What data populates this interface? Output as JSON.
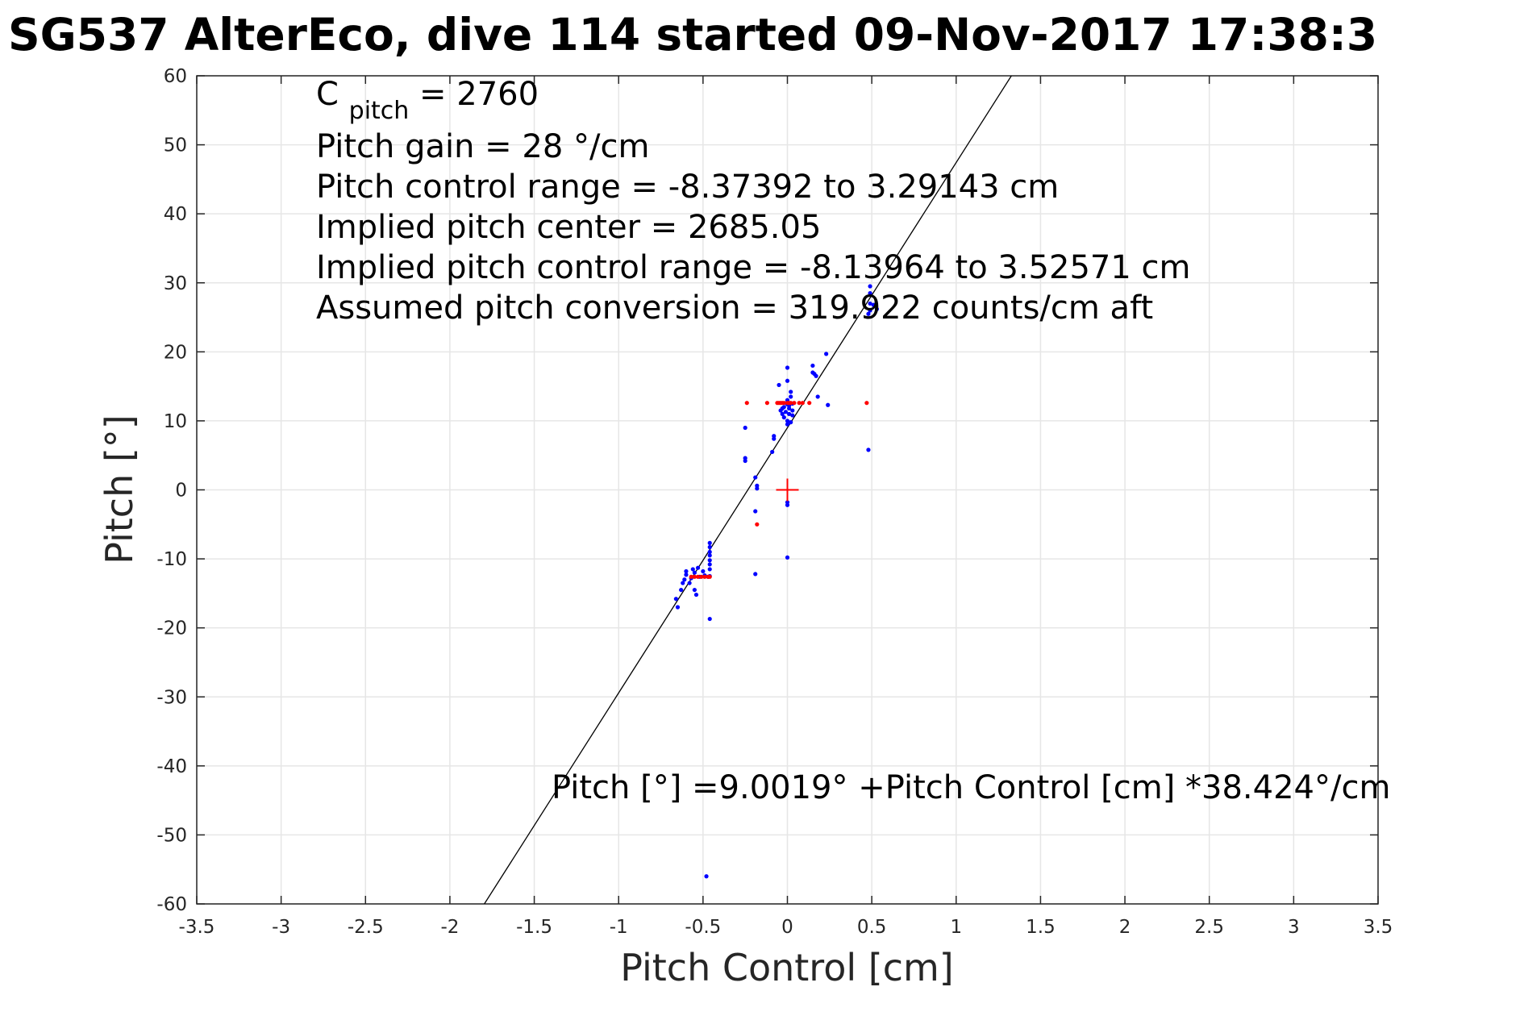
{
  "chart_data": {
    "type": "scatter",
    "title": "SG537 AlterEco, dive 114 started 09-Nov-2017 17:38:3",
    "xlabel": "Pitch Control [cm]",
    "ylabel": "Pitch [°]",
    "xlim": [
      -3.5,
      3.5
    ],
    "ylim": [
      -60,
      60
    ],
    "grid": true,
    "x_ticks": [
      -3.5,
      -3,
      -2.5,
      -2,
      -1.5,
      -1,
      -0.5,
      0,
      0.5,
      1,
      1.5,
      2,
      2.5,
      3,
      3.5
    ],
    "x_tick_labels": [
      "-3.5",
      "-3",
      "-2.5",
      "-2",
      "-1.5",
      "-1",
      "-0.5",
      "0",
      "0.5",
      "1",
      "1.5",
      "2",
      "2.5",
      "3",
      "3.5"
    ],
    "y_ticks": [
      60,
      50,
      40,
      30,
      20,
      10,
      0,
      -10,
      -20,
      -30,
      -40,
      -50,
      -60
    ],
    "y_tick_labels": [
      "60",
      "50",
      "40",
      "30",
      "20",
      "10",
      "0",
      "-10",
      "-20",
      "-30",
      "-40",
      "-50",
      "-60"
    ],
    "annotations": {
      "c_pitch": {
        "main": "C",
        "sub": "pitch",
        "rest": " = 2760"
      },
      "lines": [
        "Pitch gain = 28 °/cm",
        "Pitch control range = -8.37392 to 3.29143 cm",
        "Implied pitch center = 2685.05",
        "Implied pitch control range = -8.13964 to 3.52571 cm",
        "Assumed pitch conversion = 319.922 counts/cm aft"
      ],
      "fit_equation": "Pitch [°] =9.0019° +Pitch Control [cm] *38.424°/cm"
    },
    "fit_line": {
      "intercept": 9.0019,
      "slope": 38.424,
      "color": "#000000"
    },
    "center_marker": {
      "x": 0,
      "y": 0,
      "color": "#ff0000"
    },
    "series": [
      {
        "color": "#0000ff",
        "points": [
          [
            -0.65,
            -17.0
          ],
          [
            -0.66,
            -15.8
          ],
          [
            -0.63,
            -14.5
          ],
          [
            -0.62,
            -13.5
          ],
          [
            -0.61,
            -13.0
          ],
          [
            -0.6,
            -12.3
          ],
          [
            -0.6,
            -11.8
          ],
          [
            -0.58,
            -13.5
          ],
          [
            -0.57,
            -12.8
          ],
          [
            -0.56,
            -11.5
          ],
          [
            -0.55,
            -12.0
          ],
          [
            -0.55,
            -14.5
          ],
          [
            -0.54,
            -15.2
          ],
          [
            -0.53,
            -11.3
          ],
          [
            -0.52,
            -12.6
          ],
          [
            -0.5,
            -11.8
          ],
          [
            -0.49,
            -12.4
          ],
          [
            -0.47,
            -12.6
          ],
          [
            -0.46,
            -12.5
          ],
          [
            -0.46,
            -11.5
          ],
          [
            -0.46,
            -10.8
          ],
          [
            -0.46,
            -10.2
          ],
          [
            -0.46,
            -9.5
          ],
          [
            -0.46,
            -9.0
          ],
          [
            -0.46,
            -8.3
          ],
          [
            -0.46,
            -7.7
          ],
          [
            -0.46,
            -18.7
          ],
          [
            -0.48,
            -56.0
          ],
          [
            -0.25,
            9.0
          ],
          [
            -0.25,
            4.6
          ],
          [
            -0.25,
            4.2
          ],
          [
            -0.19,
            1.8
          ],
          [
            -0.18,
            0.6
          ],
          [
            -0.18,
            0.2
          ],
          [
            -0.19,
            -3.1
          ],
          [
            -0.19,
            -12.2
          ],
          [
            -0.08,
            7.8
          ],
          [
            -0.08,
            7.4
          ],
          [
            -0.09,
            5.5
          ],
          [
            -0.05,
            15.2
          ],
          [
            -0.04,
            11.5
          ],
          [
            -0.03,
            11.0
          ],
          [
            -0.02,
            10.5
          ],
          [
            -0.02,
            12.0
          ],
          [
            -0.01,
            11.3
          ],
          [
            0.0,
            10.0
          ],
          [
            0.0,
            9.5
          ],
          [
            0.0,
            12.4
          ],
          [
            0.0,
            13.0
          ],
          [
            0.0,
            15.8
          ],
          [
            0.0,
            17.7
          ],
          [
            0.01,
            11.0
          ],
          [
            0.01,
            11.8
          ],
          [
            0.01,
            12.2
          ],
          [
            0.02,
            9.8
          ],
          [
            0.02,
            13.5
          ],
          [
            0.02,
            14.2
          ],
          [
            0.03,
            10.8
          ],
          [
            0.03,
            11.5
          ],
          [
            0.03,
            12.5
          ],
          [
            0.0,
            -1.8
          ],
          [
            0.0,
            -2.2
          ],
          [
            0.0,
            -9.8
          ],
          [
            -0.03,
            11.8
          ],
          [
            0.15,
            18.0
          ],
          [
            0.15,
            17.0
          ],
          [
            0.16,
            16.8
          ],
          [
            0.17,
            16.5
          ],
          [
            0.18,
            13.5
          ],
          [
            0.23,
            19.7
          ],
          [
            0.24,
            12.3
          ],
          [
            0.48,
            25.5
          ],
          [
            0.49,
            26.0
          ],
          [
            0.49,
            27.0
          ],
          [
            0.49,
            28.5
          ],
          [
            0.49,
            29.5
          ],
          [
            0.51,
            26.8
          ],
          [
            0.53,
            26.2
          ],
          [
            0.48,
            5.8
          ]
        ]
      },
      {
        "color": "#ff0000",
        "points": [
          [
            -0.57,
            -12.6
          ],
          [
            -0.55,
            -12.6
          ],
          [
            -0.53,
            -12.6
          ],
          [
            -0.51,
            -12.6
          ],
          [
            -0.49,
            -12.6
          ],
          [
            -0.47,
            -12.6
          ],
          [
            -0.46,
            -12.6
          ],
          [
            -0.24,
            12.6
          ],
          [
            -0.12,
            12.6
          ],
          [
            -0.06,
            12.6
          ],
          [
            -0.05,
            12.6
          ],
          [
            -0.04,
            12.6
          ],
          [
            -0.03,
            12.6
          ],
          [
            -0.02,
            12.6
          ],
          [
            0.0,
            12.6
          ],
          [
            0.01,
            12.6
          ],
          [
            0.02,
            12.6
          ],
          [
            0.04,
            12.6
          ],
          [
            0.07,
            12.6
          ],
          [
            0.09,
            12.6
          ],
          [
            0.13,
            12.6
          ],
          [
            0.47,
            12.6
          ],
          [
            -0.18,
            -5.0
          ]
        ]
      }
    ]
  }
}
